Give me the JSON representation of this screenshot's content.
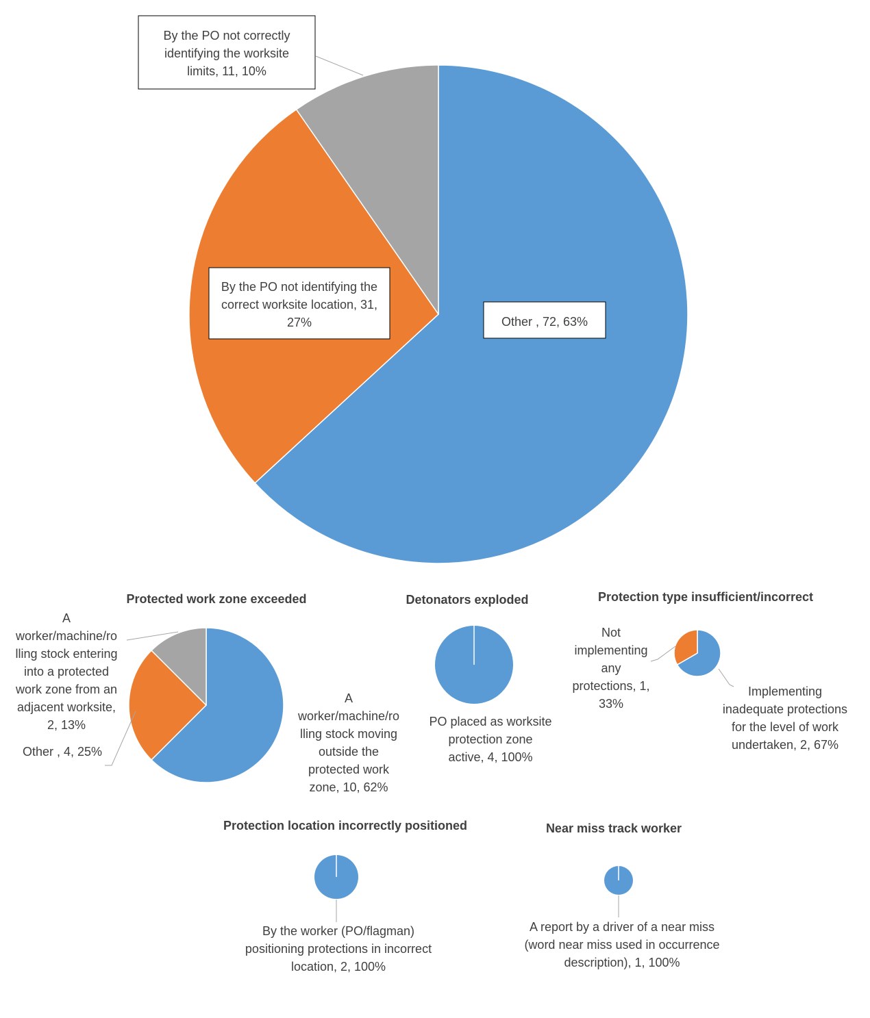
{
  "colors": {
    "blue": "#5B9BD5",
    "orange": "#ED7D31",
    "gray": "#A5A5A5",
    "text": "#404040",
    "leader": "#A6A6A6"
  },
  "chart_data": [
    {
      "type": "pie",
      "title": "",
      "slices": [
        {
          "name": "Other ",
          "value": 72,
          "percent": 63,
          "color": "#5B9BD5",
          "label": "Other , 72, 63%"
        },
        {
          "name": "By the PO not identifying the correct worksite location",
          "value": 31,
          "percent": 27,
          "color": "#ED7D31",
          "label": "By the PO not identifying the correct worksite location, 31, 27%"
        },
        {
          "name": "By the PO not correctly identifying the worksite limits",
          "value": 11,
          "percent": 10,
          "color": "#A5A5A5",
          "label": "By the PO not correctly identifying the worksite limits, 11, 10%"
        }
      ]
    },
    {
      "type": "pie",
      "title": "Protected work zone exceeded",
      "slices": [
        {
          "name": "A worker/machine/rolling stock moving outside the protected work zone",
          "value": 10,
          "percent": 62,
          "color": "#5B9BD5",
          "label": "A worker/machine/rolling stock moving outside the protected work zone, 10, 62%"
        },
        {
          "name": "Other ",
          "value": 4,
          "percent": 25,
          "color": "#ED7D31",
          "label": "Other , 4, 25%"
        },
        {
          "name": "A worker/machine/rolling stock entering into a protected work zone from an adjacent worksite",
          "value": 2,
          "percent": 13,
          "color": "#A5A5A5",
          "label": "A worker/machine/rolling stock entering into a protected work zone from an adjacent worksite, 2, 13%"
        }
      ]
    },
    {
      "type": "pie",
      "title": "Detonators exploded",
      "slices": [
        {
          "name": "PO placed as worksite protection zone active",
          "value": 4,
          "percent": 100,
          "color": "#5B9BD5",
          "label": "PO placed as worksite protection zone active, 4, 100%"
        }
      ]
    },
    {
      "type": "pie",
      "title": "Protection type insufficient/incorrect",
      "slices": [
        {
          "name": "Implementing inadequate protections for the level of work undertaken",
          "value": 2,
          "percent": 67,
          "color": "#5B9BD5",
          "label": "Implementing inadequate protections for the level of work undertaken, 2, 67%"
        },
        {
          "name": "Not implementing any protections",
          "value": 1,
          "percent": 33,
          "color": "#ED7D31",
          "label": "Not implementing any protections, 1, 33%"
        }
      ]
    },
    {
      "type": "pie",
      "title": "Protection location incorrectly positioned",
      "slices": [
        {
          "name": "By the worker (PO/flagman) positioning protections in incorrect location",
          "value": 2,
          "percent": 100,
          "color": "#5B9BD5",
          "label": "By the worker (PO/flagman) positioning protections in incorrect location, 2, 100%"
        }
      ]
    },
    {
      "type": "pie",
      "title": "Near miss track worker",
      "slices": [
        {
          "name": "A report by a driver of a near miss (word near miss used in occurrence description)",
          "value": 1,
          "percent": 100,
          "color": "#5B9BD5",
          "label": "A report by a driver of a near miss (word near miss used in occurrence description), 1, 100%"
        }
      ]
    }
  ],
  "label_lines": [
    [
      [
        "Other , 72, 63%"
      ],
      [
        "By the PO not identifying the",
        "correct worksite location, 31,",
        "27%"
      ],
      [
        "By the PO not correctly",
        "identifying the worksite",
        "limits, 11, 10%"
      ]
    ],
    [
      [
        "A",
        "worker/machine/ro",
        "lling stock moving",
        "outside the",
        "protected work",
        "zone, 10, 62%"
      ],
      [
        "Other , 4, 25%"
      ],
      [
        "A",
        "worker/machine/ro",
        "lling stock entering",
        "into a protected",
        "work zone from an",
        "adjacent worksite,",
        "2, 13%"
      ]
    ],
    [
      [
        "PO placed as worksite",
        "protection zone",
        "active, 4, 100%"
      ]
    ],
    [
      [
        "Implementing",
        "inadequate protections",
        "for the level of work",
        "undertaken, 2, 67%"
      ],
      [
        "Not",
        "implementing",
        "any",
        "protections, 1,",
        "33%"
      ]
    ],
    [
      [
        "By the worker (PO/flagman)",
        "positioning protections in incorrect",
        "location, 2, 100%"
      ]
    ],
    [
      [
        "A report by a driver of a near miss",
        "(word near miss used in occurrence",
        "description), 1, 100%"
      ]
    ]
  ]
}
